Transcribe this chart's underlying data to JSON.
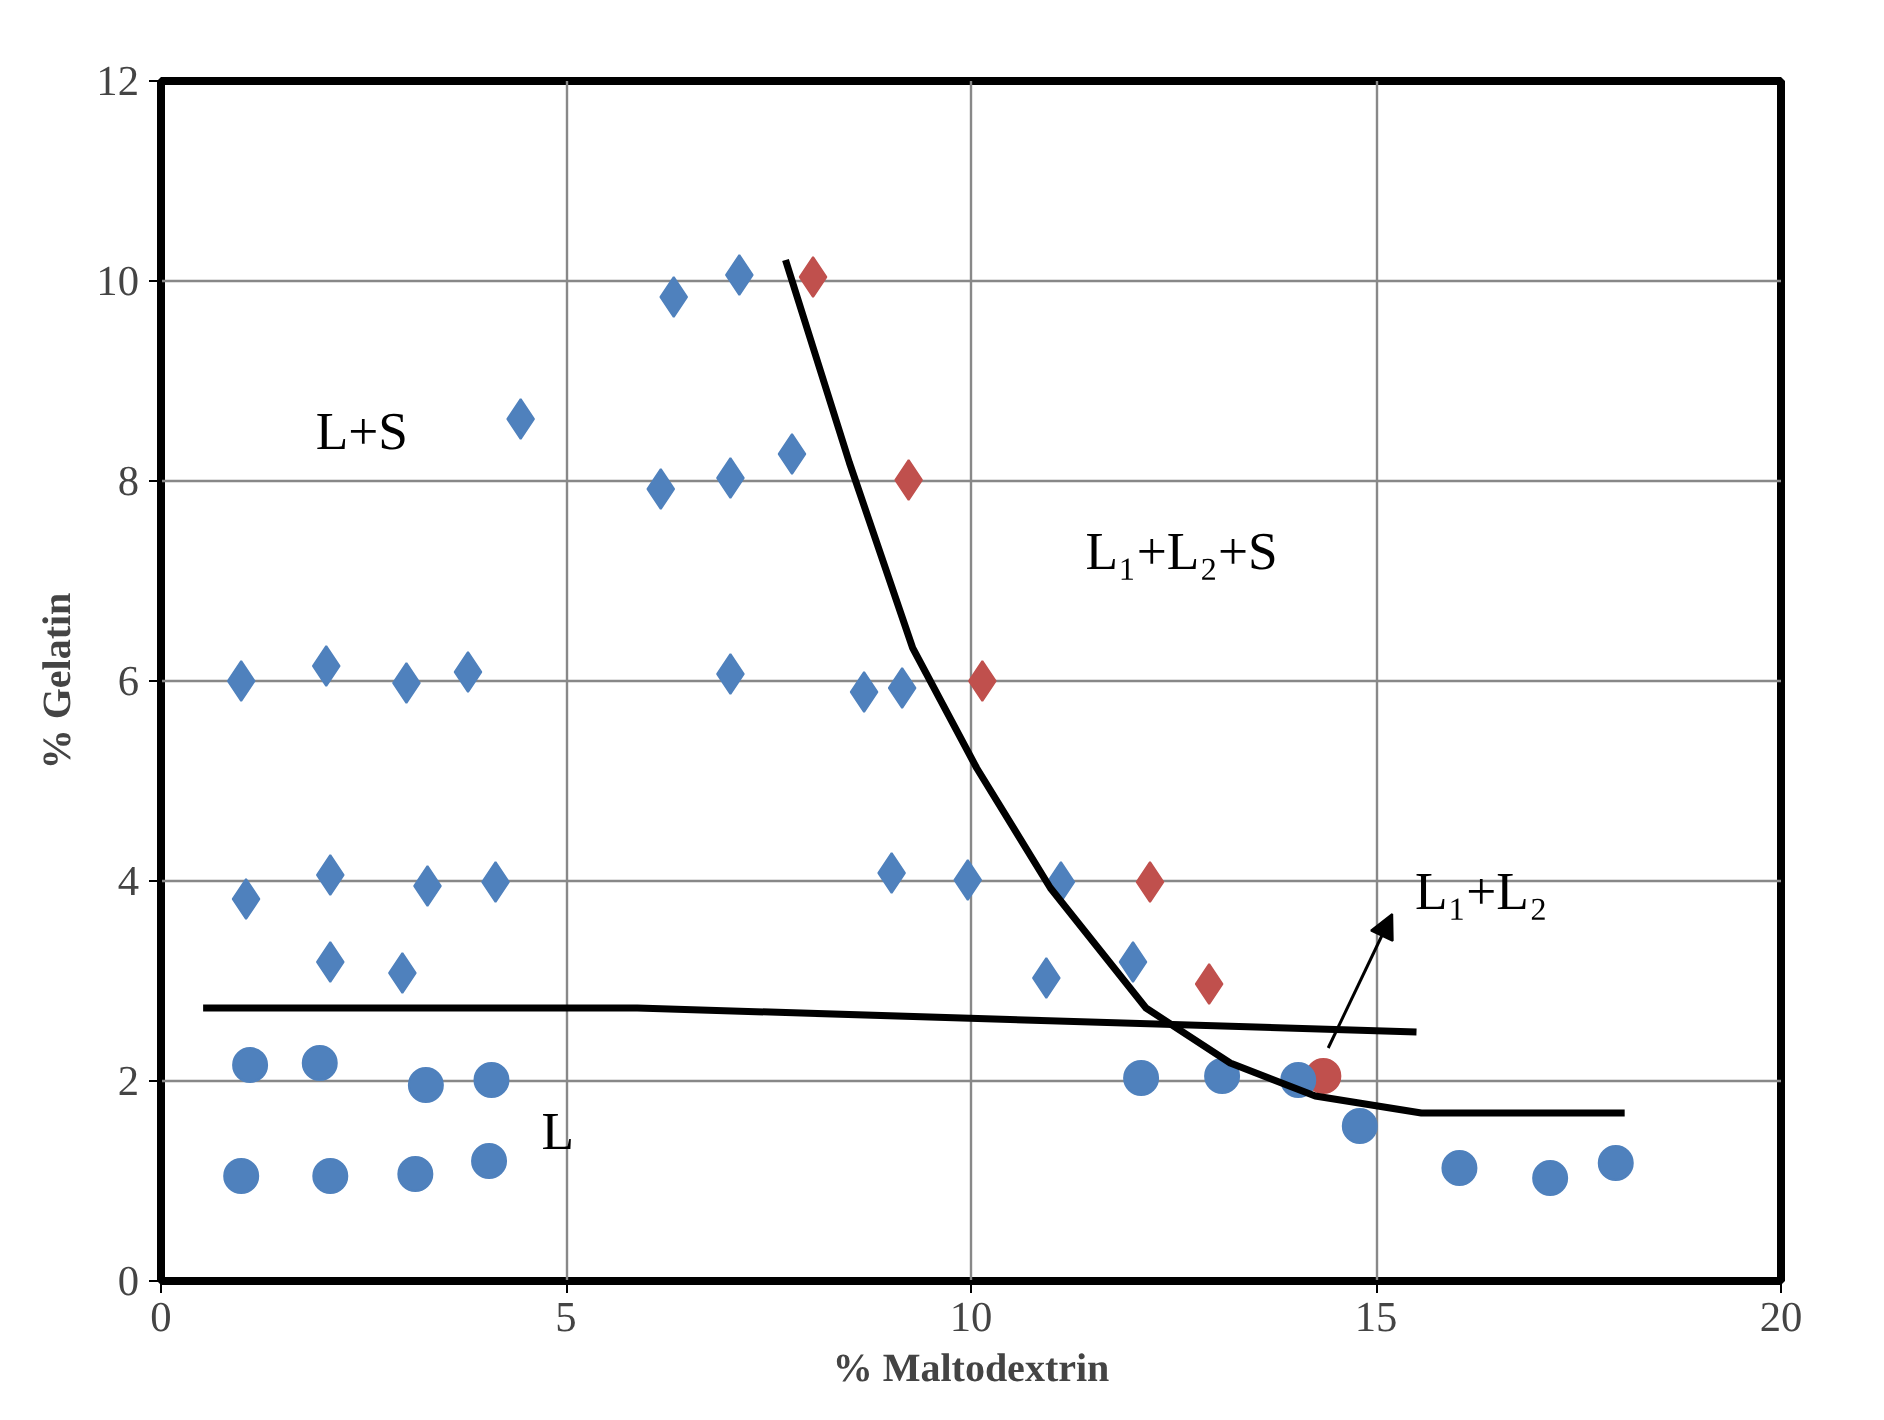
{
  "chart_data": {
    "type": "scatter",
    "xlabel": "% Maltodextrin",
    "ylabel": "% Gelatin",
    "xlim": [
      0,
      20
    ],
    "ylim": [
      0,
      12
    ],
    "xticks": [
      0,
      5,
      10,
      15,
      20
    ],
    "yticks": [
      0,
      2,
      4,
      6,
      8,
      10,
      12
    ],
    "grid": true,
    "series": [
      {
        "color": "#4f81bd",
        "marker": "diamond",
        "x": [
          0.99,
          2.04,
          3.03,
          3.79,
          4.44,
          1.05,
          2.09,
          3.29,
          4.13,
          2.09,
          2.98,
          6.17,
          6.33,
          7.03,
          7.14,
          7.79,
          7.03,
          8.68,
          9.15,
          9.02,
          9.96,
          11.11,
          10.93,
          12.0
        ],
        "values": [
          6.0,
          6.15,
          5.98,
          6.09,
          8.62,
          3.82,
          4.06,
          3.95,
          3.99,
          3.19,
          3.08,
          7.92,
          9.84,
          8.03,
          10.06,
          8.27,
          6.07,
          5.89,
          5.93,
          4.08,
          4.01,
          3.99,
          3.03,
          3.19
        ]
      },
      {
        "color": "#c0504d",
        "marker": "diamond",
        "x": [
          8.05,
          9.23,
          10.14,
          12.21,
          12.94
        ],
        "values": [
          10.04,
          8.01,
          6.0,
          3.99,
          2.97
        ]
      },
      {
        "color": "#c0504d",
        "marker": "circle",
        "x": [
          14.35
        ],
        "values": [
          2.05
        ]
      },
      {
        "color": "#4f81bd",
        "marker": "circle",
        "x": [
          0.99,
          2.09,
          3.14,
          4.05,
          1.1,
          1.96,
          3.27,
          4.08,
          12.1,
          13.1,
          14.04,
          14.8,
          16.03,
          17.15,
          17.96
        ],
        "values": [
          1.05,
          1.05,
          1.07,
          1.2,
          2.16,
          2.18,
          1.96,
          2.01,
          2.03,
          2.05,
          2.01,
          1.55,
          1.13,
          1.03,
          1.18
        ]
      },
      {
        "type": "line",
        "color": "#000000",
        "marker": "none",
        "x": [
          0.52,
          5.88,
          15.5
        ],
        "values": [
          2.73,
          2.73,
          2.49
        ]
      },
      {
        "type": "line",
        "color": "#000000",
        "marker": "none",
        "x": [
          7.71,
          8.5,
          9.28,
          10.07,
          10.98,
          12.16,
          13.2,
          14.25,
          15.56,
          18.07
        ],
        "values": [
          10.21,
          8.18,
          6.33,
          5.13,
          3.93,
          2.73,
          2.18,
          1.85,
          1.68,
          1.68
        ]
      }
    ],
    "annotations": [
      "L+S",
      "L₁+L₂+S",
      "L₁+L₂",
      "L"
    ]
  }
}
